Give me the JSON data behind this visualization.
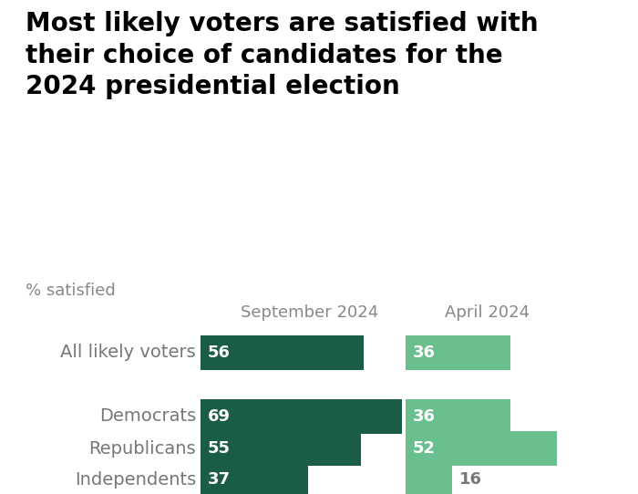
{
  "title": "Most likely voters are satisfied with\ntheir choice of candidates for the\n2024 presidential election",
  "subtitle": "% satisfied",
  "col_labels": [
    "September 2024",
    "April 2024"
  ],
  "row_labels": [
    "All likely voters",
    "Democrats",
    "Republicans",
    "Independents"
  ],
  "sep2024_values": [
    56,
    69,
    55,
    37
  ],
  "apr2024_values": [
    36,
    36,
    52,
    16
  ],
  "color_sep": "#1a5c45",
  "color_apr": "#6abf8e",
  "background_color": "#ffffff",
  "title_fontsize": 20,
  "subtitle_fontsize": 13,
  "label_fontsize": 14,
  "value_fontsize": 13,
  "col_label_fontsize": 13,
  "max_val": 75,
  "title_color": "#000000",
  "subtitle_color": "#888888",
  "label_color": "#777777",
  "col_label_color": "#888888",
  "value_color_inside": "#ffffff",
  "value_color_outside": "#777777"
}
